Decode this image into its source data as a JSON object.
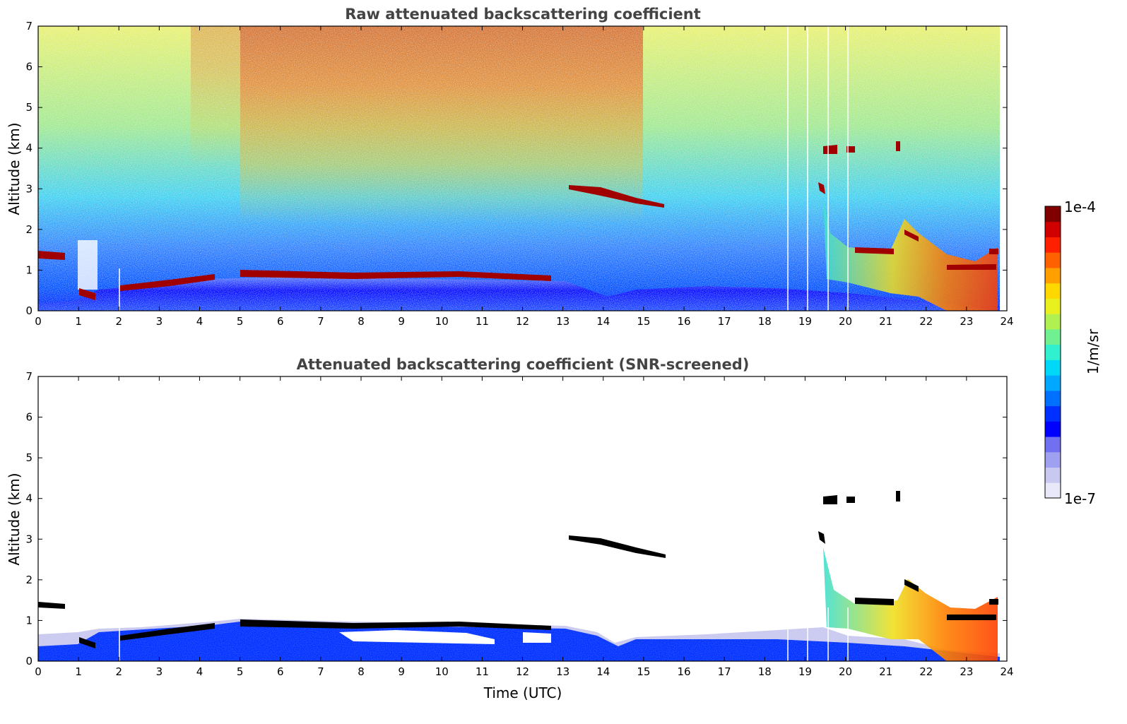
{
  "chart_data": [
    {
      "type": "heatmap",
      "title": "Raw attenuated backscattering coefficient",
      "xlabel": "",
      "ylabel": "Altitude (km)",
      "xlim": [
        0,
        24
      ],
      "ylim": [
        0,
        7
      ],
      "x_ticks": [
        "0",
        "1",
        "2",
        "3",
        "4",
        "5",
        "6",
        "7",
        "8",
        "9",
        "10",
        "11",
        "12",
        "13",
        "14",
        "15",
        "16",
        "17",
        "18",
        "19",
        "20",
        "21",
        "22",
        "23",
        "24"
      ],
      "y_ticks": [
        "0",
        "1",
        "2",
        "3",
        "4",
        "5",
        "6",
        "7"
      ],
      "features": [
        {
          "kind": "boundary_layer_cloud",
          "t_start": 0,
          "t_end": 0.65,
          "alt_start": 1.35,
          "alt_end": 1.35
        },
        {
          "kind": "boundary_layer_cloud",
          "t_start": 1.05,
          "t_end": 1.4,
          "alt_start": 0.45,
          "alt_end": 0.35
        },
        {
          "kind": "boundary_layer_cloud",
          "t_start": 1.8,
          "t_end": 4.3,
          "alt_start": 0.55,
          "alt_end": 0.85
        },
        {
          "kind": "boundary_layer_cloud",
          "t_start": 5.0,
          "t_end": 12.7,
          "alt_start": 0.95,
          "alt_end": 0.8
        },
        {
          "kind": "elevated_cloud",
          "t_start": 13.1,
          "t_end": 15.5,
          "alt_start": 3.05,
          "alt_end": 2.6
        },
        {
          "kind": "high_cloud",
          "t_start": 19.6,
          "t_end": 20.5,
          "alt_start": 4.0,
          "alt_end": 4.0
        },
        {
          "kind": "aerosol_layer",
          "t_start": 19.3,
          "t_end": 23.8,
          "alt_start": 1.6,
          "alt_end": 1.1
        }
      ]
    },
    {
      "type": "heatmap",
      "title": "Attenuated backscattering coefficient (SNR-screened)",
      "xlabel": "Time (UTC)",
      "ylabel": "Altitude (km)",
      "xlim": [
        0,
        24
      ],
      "ylim": [
        0,
        7
      ],
      "x_ticks": [
        "0",
        "1",
        "2",
        "3",
        "4",
        "5",
        "6",
        "7",
        "8",
        "9",
        "10",
        "11",
        "12",
        "13",
        "14",
        "15",
        "16",
        "17",
        "18",
        "19",
        "20",
        "21",
        "22",
        "23",
        "24"
      ],
      "y_ticks": [
        "0",
        "1",
        "2",
        "3",
        "4",
        "5",
        "6",
        "7"
      ]
    }
  ],
  "colorbar": {
    "label": "1/m/sr",
    "max_label": "1e-4",
    "min_label": "1e-7",
    "colors": [
      "#e8e8f8",
      "#c8c8f0",
      "#a0a0f0",
      "#7070f0",
      "#0000ff",
      "#0030ff",
      "#0070ff",
      "#00a8ff",
      "#00d8f8",
      "#30f0d0",
      "#70f090",
      "#b0f050",
      "#e8f020",
      "#ffd800",
      "#ffa000",
      "#ff6000",
      "#ff2000",
      "#d00000",
      "#800000"
    ]
  }
}
